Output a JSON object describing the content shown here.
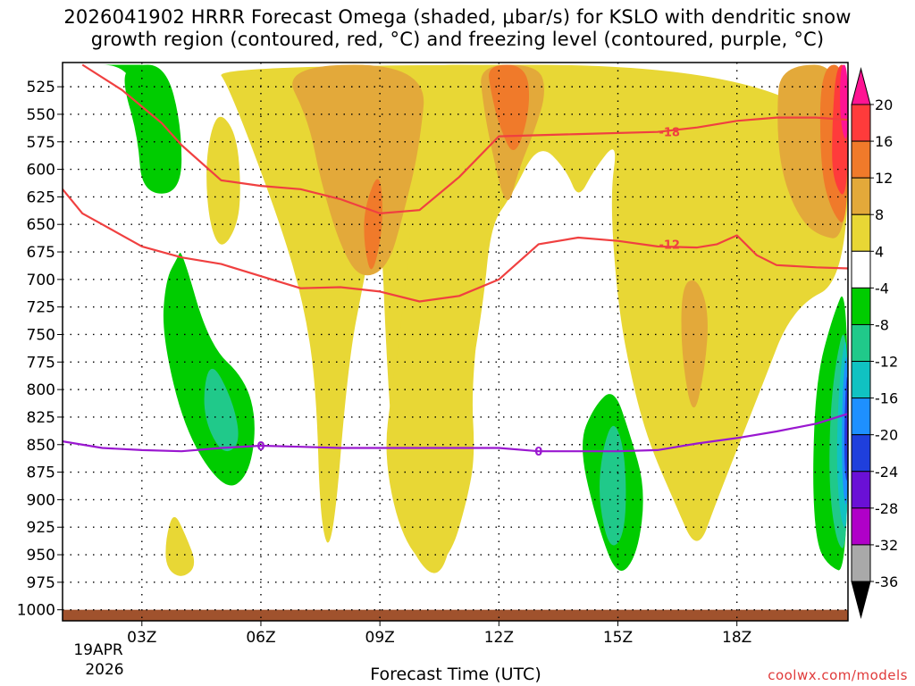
{
  "chart_data": {
    "type": "time-height",
    "title": "2026041902 HRRR Forecast Omega (shaded, μbar/s) for KSLO with dendritic snow",
    "title_line2": "growth region (contoured, red, °C) and freezing level (contoured, purple, °C)",
    "xlabel": "Forecast Time (UTC)",
    "credit": "coolwx.com/models",
    "date_labels": [
      "19APR",
      "2026"
    ],
    "x_range_hours": [
      1,
      20.8
    ],
    "y_range_hpa": [
      503,
      1010
    ],
    "x_ticks": [
      {
        "hour": 3,
        "label": "03Z"
      },
      {
        "hour": 6,
        "label": "06Z"
      },
      {
        "hour": 9,
        "label": "09Z"
      },
      {
        "hour": 12,
        "label": "12Z"
      },
      {
        "hour": 15,
        "label": "15Z"
      },
      {
        "hour": 18,
        "label": "18Z"
      }
    ],
    "y_ticks": [
      "525",
      "550",
      "575",
      "600",
      "625",
      "650",
      "675",
      "700",
      "725",
      "750",
      "775",
      "800",
      "825",
      "850",
      "875",
      "900",
      "925",
      "950",
      "975",
      "1000"
    ],
    "colorbar": {
      "labels": [
        "20",
        "16",
        "12",
        "8",
        "4",
        "-4",
        "-8",
        "-12",
        "-16",
        "-20",
        "-24",
        "-28",
        "-32",
        "-36"
      ],
      "colors": [
        "#ff1493",
        "#ff3b3b",
        "#f07a2a",
        "#e3a93a",
        "#e8d735",
        "#ffffff",
        "#00cc00",
        "#20c98a",
        "#10c2c2",
        "#1e90ff",
        "#1f3fdc",
        "#6a10d6",
        "#b000c8",
        "#a9a9a9",
        "#000000"
      ]
    },
    "series": [
      {
        "name": "-18 C isotherm (DGZ top)",
        "color": "#f04040",
        "label": "-18",
        "points": [
          [
            1.5,
            505
          ],
          [
            2.5,
            528
          ],
          [
            3.5,
            558
          ],
          [
            4,
            578
          ],
          [
            5,
            610
          ],
          [
            6,
            615
          ],
          [
            7,
            618
          ],
          [
            8,
            627
          ],
          [
            9,
            640
          ],
          [
            10,
            637
          ],
          [
            11,
            607
          ],
          [
            12,
            570
          ],
          [
            14,
            568
          ],
          [
            16,
            566
          ],
          [
            17,
            562
          ],
          [
            18,
            556
          ],
          [
            19,
            553
          ],
          [
            20,
            553
          ],
          [
            20.8,
            555
          ]
        ]
      },
      {
        "name": "-12 C isotherm (DGZ bottom)",
        "color": "#f04040",
        "label": "-12",
        "points": [
          [
            1,
            618
          ],
          [
            1.5,
            640
          ],
          [
            2,
            650
          ],
          [
            3,
            670
          ],
          [
            4,
            680
          ],
          [
            5,
            686
          ],
          [
            6,
            697
          ],
          [
            7,
            708
          ],
          [
            8,
            707
          ],
          [
            9,
            711
          ],
          [
            10,
            720
          ],
          [
            11,
            715
          ],
          [
            12,
            700
          ],
          [
            13,
            668
          ],
          [
            14,
            662
          ],
          [
            15,
            665
          ],
          [
            16,
            670
          ],
          [
            17,
            671
          ],
          [
            17.5,
            668
          ],
          [
            18,
            660
          ],
          [
            18.5,
            678
          ],
          [
            19,
            687
          ],
          [
            20,
            689
          ],
          [
            20.8,
            690
          ]
        ]
      },
      {
        "name": "0 C isotherm (freezing level)",
        "color": "#9a18d0",
        "label": "0",
        "points": [
          [
            1,
            847
          ],
          [
            2,
            853
          ],
          [
            3,
            855
          ],
          [
            4,
            856
          ],
          [
            5,
            853
          ],
          [
            6,
            851
          ],
          [
            7,
            852
          ],
          [
            8,
            853
          ],
          [
            9,
            853
          ],
          [
            10,
            853
          ],
          [
            11,
            853
          ],
          [
            12,
            853
          ],
          [
            13,
            856
          ],
          [
            14,
            856
          ],
          [
            15,
            856
          ],
          [
            16,
            855
          ],
          [
            17,
            849
          ],
          [
            18,
            844
          ],
          [
            19,
            838
          ],
          [
            20,
            831
          ],
          [
            20.8,
            822
          ]
        ]
      }
    ],
    "series_labels": [
      {
        "text": "-18",
        "hour": 16.3,
        "hpa": 566
      },
      {
        "text": "-12",
        "hour": 16.3,
        "hpa": 668
      },
      {
        "text": "0",
        "hour": 6,
        "hpa": 851
      },
      {
        "text": "0",
        "hour": 13,
        "hpa": 856
      }
    ],
    "filled_regions": [
      {
        "color": "#e8d735",
        "points": [
          [
            4.8,
            505
          ],
          [
            20.8,
            505
          ],
          [
            20.8,
            700
          ],
          [
            19.4,
            725
          ],
          [
            18.6,
            800
          ],
          [
            17.5,
            900
          ],
          [
            17.0,
            950
          ],
          [
            16.4,
            900
          ],
          [
            15.8,
            850
          ],
          [
            15.4,
            800
          ],
          [
            15.0,
            725
          ],
          [
            14.8,
            625
          ],
          [
            15.0,
            573
          ],
          [
            14.4,
            600
          ],
          [
            14.0,
            628
          ],
          [
            13.7,
            600
          ],
          [
            13.0,
            575
          ],
          [
            12.3,
            625
          ],
          [
            11.8,
            650
          ],
          [
            11.6,
            725
          ],
          [
            11.0,
            850
          ],
          [
            10.8,
            950
          ],
          [
            10.3,
            975
          ],
          [
            9.5,
            925
          ],
          [
            9.2,
            800
          ],
          [
            9.0,
            625
          ],
          [
            8.6,
            700
          ],
          [
            8.2,
            775
          ],
          [
            7.8,
            950
          ],
          [
            7.5,
            925
          ],
          [
            7.4,
            800
          ],
          [
            7.1,
            725
          ],
          [
            6.5,
            650
          ],
          [
            5.2,
            525
          ]
        ]
      },
      {
        "color": "#e8d735",
        "points": [
          [
            10.0,
            505
          ],
          [
            12.0,
            505
          ],
          [
            12.1,
            525
          ],
          [
            11.9,
            620
          ],
          [
            11.6,
            700
          ],
          [
            11.3,
            800
          ],
          [
            11.4,
            860
          ],
          [
            11.2,
            900
          ],
          [
            10.8,
            950
          ],
          [
            10.2,
            965
          ],
          [
            9.5,
            930
          ],
          [
            9.1,
            860
          ],
          [
            9.3,
            800
          ],
          [
            9.6,
            725
          ],
          [
            9.9,
            600
          ],
          [
            9.9,
            530
          ]
        ]
      },
      {
        "color": "#e8d735",
        "points": [
          [
            4.75,
            562
          ],
          [
            5.0,
            548
          ],
          [
            5.4,
            570
          ],
          [
            5.5,
            620
          ],
          [
            5.4,
            652
          ],
          [
            5.0,
            674
          ],
          [
            4.7,
            650
          ],
          [
            4.6,
            600
          ]
        ]
      },
      {
        "color": "#e8d735",
        "points": [
          [
            3.8,
            910
          ],
          [
            4.1,
            932
          ],
          [
            4.4,
            960
          ],
          [
            4.0,
            972
          ],
          [
            3.6,
            962
          ],
          [
            3.6,
            935
          ]
        ]
      },
      {
        "color": "#e3a93a",
        "points": [
          [
            6.5,
            505
          ],
          [
            10.2,
            505
          ],
          [
            10.0,
            580
          ],
          [
            9.6,
            640
          ],
          [
            9.2,
            690
          ],
          [
            8.5,
            700
          ],
          [
            8.0,
            670
          ],
          [
            7.5,
            610
          ],
          [
            7.2,
            555
          ]
        ]
      },
      {
        "color": "#e3a93a",
        "points": [
          [
            11.5,
            505
          ],
          [
            13.0,
            505
          ],
          [
            13.2,
            530
          ],
          [
            12.9,
            565
          ],
          [
            12.5,
            600
          ],
          [
            12.2,
            640
          ],
          [
            11.8,
            580
          ],
          [
            11.6,
            540
          ]
        ]
      },
      {
        "color": "#e3a93a",
        "points": [
          [
            19.1,
            505
          ],
          [
            20.8,
            505
          ],
          [
            20.8,
            665
          ],
          [
            20.0,
            660
          ],
          [
            19.5,
            640
          ],
          [
            19.1,
            600
          ],
          [
            19.0,
            550
          ]
        ]
      },
      {
        "color": "#e3a93a",
        "points": [
          [
            16.6,
            705
          ],
          [
            17.0,
            698
          ],
          [
            17.3,
            730
          ],
          [
            17.2,
            780
          ],
          [
            16.9,
            830
          ],
          [
            16.6,
            770
          ]
        ]
      },
      {
        "color": "#f07a2a",
        "points": [
          [
            11.7,
            505
          ],
          [
            12.7,
            505
          ],
          [
            12.8,
            545
          ],
          [
            12.4,
            592
          ],
          [
            12.0,
            560
          ],
          [
            11.8,
            530
          ]
        ]
      },
      {
        "color": "#f07a2a",
        "points": [
          [
            8.6,
            635
          ],
          [
            9.0,
            598
          ],
          [
            9.1,
            650
          ],
          [
            8.8,
            700
          ],
          [
            8.6,
            670
          ]
        ]
      },
      {
        "color": "#f07a2a",
        "points": [
          [
            20.1,
            505
          ],
          [
            20.8,
            505
          ],
          [
            20.8,
            655
          ],
          [
            20.4,
            640
          ],
          [
            20.1,
            600
          ]
        ]
      },
      {
        "color": "#ff3b3b",
        "points": [
          [
            20.5,
            505
          ],
          [
            20.8,
            505
          ],
          [
            20.8,
            632
          ],
          [
            20.4,
            610
          ],
          [
            20.4,
            560
          ]
        ]
      },
      {
        "color": "#ff1493",
        "points": [
          [
            20.6,
            505
          ],
          [
            20.8,
            505
          ],
          [
            20.8,
            580
          ],
          [
            20.6,
            560
          ]
        ]
      },
      {
        "color": "#00cc00",
        "points": [
          [
            1.5,
            505
          ],
          [
            2.7,
            505
          ],
          [
            3.2,
            505
          ],
          [
            3.4,
            535
          ],
          [
            2.9,
            555
          ],
          [
            2.9,
            530
          ],
          [
            2.5,
            505
          ]
        ]
      },
      {
        "color": "#00cc00",
        "points": [
          [
            2.7,
            505
          ],
          [
            3.6,
            505
          ],
          [
            4.0,
            560
          ],
          [
            4.0,
            622
          ],
          [
            3.0,
            622
          ],
          [
            2.9,
            570
          ],
          [
            2.5,
            520
          ]
        ]
      },
      {
        "color": "#00cc00",
        "points": [
          [
            4.0,
            672
          ],
          [
            4.7,
            760
          ],
          [
            5.6,
            790
          ],
          [
            5.9,
            830
          ],
          [
            5.7,
            878
          ],
          [
            5.1,
            893
          ],
          [
            4.1,
            840
          ],
          [
            3.5,
            750
          ],
          [
            3.6,
            700
          ],
          [
            3.9,
            680
          ]
        ]
      },
      {
        "color": "#00cc00",
        "points": [
          [
            14.9,
            798
          ],
          [
            15.3,
            840
          ],
          [
            15.7,
            890
          ],
          [
            15.5,
            950
          ],
          [
            15.0,
            972
          ],
          [
            14.5,
            925
          ],
          [
            14.0,
            850
          ],
          [
            14.4,
            815
          ]
        ]
      },
      {
        "color": "#00cc00",
        "points": [
          [
            20.8,
            700
          ],
          [
            20.8,
            968
          ],
          [
            20.3,
            960
          ],
          [
            20.0,
            940
          ],
          [
            19.9,
            880
          ],
          [
            20.0,
            790
          ],
          [
            20.4,
            735
          ]
        ]
      },
      {
        "color": "#20c98a",
        "points": [
          [
            4.7,
            770
          ],
          [
            5.3,
            810
          ],
          [
            5.5,
            850
          ],
          [
            5.0,
            860
          ],
          [
            4.5,
            820
          ]
        ]
      },
      {
        "color": "#20c98a",
        "points": [
          [
            14.9,
            825
          ],
          [
            15.2,
            860
          ],
          [
            15.2,
            930
          ],
          [
            14.8,
            948
          ],
          [
            14.5,
            900
          ],
          [
            14.6,
            855
          ]
        ]
      },
      {
        "color": "#20c98a",
        "points": [
          [
            20.8,
            725
          ],
          [
            20.8,
            948
          ],
          [
            20.5,
            940
          ],
          [
            20.3,
            880
          ],
          [
            20.4,
            790
          ]
        ]
      },
      {
        "color": "#10c2c2",
        "points": [
          [
            20.8,
            740
          ],
          [
            20.8,
            932
          ],
          [
            20.6,
            918
          ],
          [
            20.5,
            860
          ],
          [
            20.6,
            780
          ]
        ]
      },
      {
        "color": "#1e90ff",
        "points": [
          [
            20.8,
            752
          ],
          [
            20.8,
            915
          ],
          [
            20.65,
            890
          ],
          [
            20.65,
            800
          ]
        ]
      },
      {
        "color": "#1f3fdc",
        "points": [
          [
            20.8,
            775
          ],
          [
            20.8,
            892
          ],
          [
            20.7,
            870
          ],
          [
            20.72,
            810
          ]
        ]
      },
      {
        "color": "#6a10d6",
        "points": [
          [
            20.8,
            800
          ],
          [
            20.8,
            870
          ],
          [
            20.76,
            840
          ]
        ]
      }
    ],
    "ground_band": {
      "from_hpa": 1000,
      "color": "#a0522d"
    }
  }
}
